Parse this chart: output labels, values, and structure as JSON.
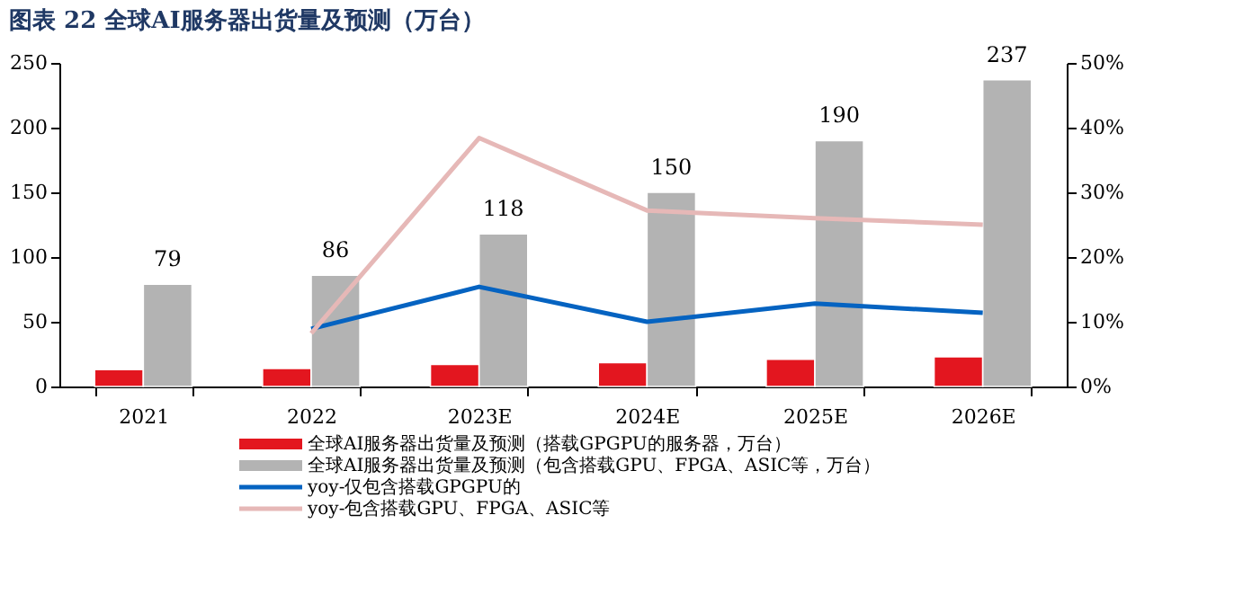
{
  "chart_data": {
    "type": "bar",
    "title": "图表 22   全球AI服务器出货量及预测（万台）",
    "categories": [
      "2021",
      "2022",
      "2023E",
      "2024E",
      "2025E",
      "2026E"
    ],
    "series": [
      {
        "name": "全球AI服务器出货量及预测（搭载GPGPU的服务器，万台）",
        "type": "bar",
        "color": "#e3161f",
        "values": [
          13,
          14,
          17,
          18.5,
          21,
          23
        ]
      },
      {
        "name": "全球AI服务器出货量及预测（包含搭载GPU、FPGA、ASIC等，万台）",
        "type": "bar",
        "color": "#b3b3b3",
        "values": [
          79,
          86,
          118,
          150,
          190,
          237
        ],
        "value_labels": [
          "79",
          "86",
          "118",
          "150",
          "190",
          "237"
        ]
      },
      {
        "name": "yoy-仅包含搭载GPGPU的",
        "type": "line",
        "axis": "y2",
        "color": "#0563c1",
        "values": [
          null,
          8.9,
          15.4,
          10.0,
          12.8,
          11.4
        ]
      },
      {
        "name": "yoy-包含搭载GPU、FPGA、ASIC等",
        "type": "line",
        "axis": "y2",
        "color": "#e6b8b7",
        "values": [
          null,
          8.2,
          38.4,
          27.2,
          26.0,
          25.0
        ]
      }
    ],
    "ylim": [
      0,
      250
    ],
    "yticks": [
      0,
      50,
      100,
      150,
      200,
      250
    ],
    "y2lim": [
      0,
      50
    ],
    "y2ticks": [
      {
        "value": 0,
        "label": "0%"
      },
      {
        "value": 10,
        "label": "10%"
      },
      {
        "value": 20,
        "label": "20%"
      },
      {
        "value": 30,
        "label": "30%"
      },
      {
        "value": 40,
        "label": "40%"
      },
      {
        "value": 50,
        "label": "50%"
      }
    ],
    "grid": false,
    "legend": "bottom"
  }
}
